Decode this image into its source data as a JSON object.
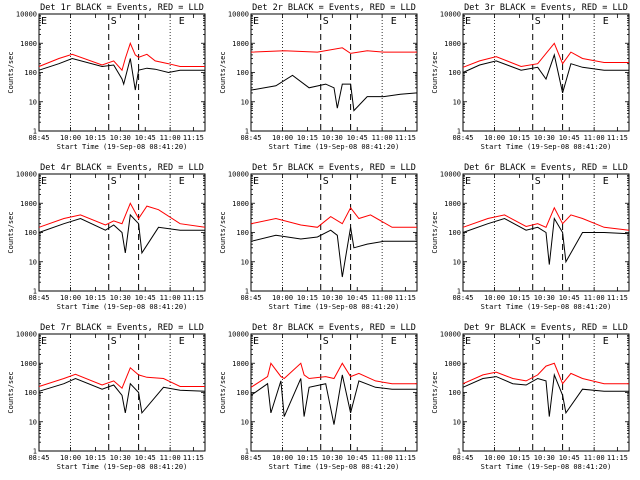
{
  "chart_data": [
    {
      "type": "line",
      "title": "Det 1r BLACK = Events, RED = LLD",
      "xlabel": "Start Time (19-Sep-08 08:41:20)",
      "ylabel": "Counts/sec",
      "yscale": "log",
      "ylim": [
        1,
        10000
      ],
      "yticks": [
        "1",
        "10",
        "100",
        "1000",
        "10000"
      ],
      "xticks": [
        "08:45",
        "10:00",
        "10:15",
        "10:30",
        "10:45",
        "11:00",
        "11:15"
      ],
      "markers": [
        "E",
        "S",
        "E"
      ],
      "series": [
        {
          "color": "#ff0000",
          "x": [
            0,
            0.12,
            0.2,
            0.38,
            0.45,
            0.5,
            0.52,
            0.55,
            0.58,
            0.6,
            0.65,
            0.7,
            0.78,
            0.85,
            1
          ],
          "y": [
            160,
            300,
            420,
            180,
            250,
            120,
            300,
            1000,
            400,
            330,
            420,
            250,
            200,
            160,
            160
          ]
        },
        {
          "color": "#000000",
          "x": [
            0,
            0.12,
            0.2,
            0.38,
            0.45,
            0.5,
            0.51,
            0.55,
            0.58,
            0.6,
            0.65,
            0.7,
            0.78,
            0.85,
            1
          ],
          "y": [
            120,
            200,
            300,
            160,
            180,
            60,
            40,
            300,
            25,
            120,
            140,
            130,
            100,
            120,
            120
          ]
        }
      ]
    },
    {
      "type": "line",
      "title": "Det 2r BLACK = Events, RED = LLD",
      "xlabel": "Start Time (19-Sep-08 08:41:20)",
      "ylabel": "Counts/sec",
      "yscale": "log",
      "ylim": [
        1,
        10000
      ],
      "yticks": [
        "1",
        "10",
        "100",
        "1000",
        "10000"
      ],
      "xticks": [
        "08:45",
        "10:00",
        "10:15",
        "10:30",
        "10:45",
        "11:00",
        "11:15"
      ],
      "markers": [
        "E",
        "S",
        "E"
      ],
      "series": [
        {
          "color": "#ff0000",
          "x": [
            0,
            0.2,
            0.4,
            0.55,
            0.6,
            0.7,
            0.8,
            1
          ],
          "y": [
            500,
            550,
            500,
            700,
            450,
            550,
            500,
            500
          ]
        },
        {
          "color": "#000000",
          "x": [
            0,
            0.15,
            0.25,
            0.35,
            0.45,
            0.5,
            0.52,
            0.55,
            0.6,
            0.62,
            0.7,
            0.8,
            0.9,
            1
          ],
          "y": [
            25,
            35,
            80,
            30,
            40,
            30,
            6,
            40,
            40,
            5,
            15,
            15,
            18,
            20
          ]
        }
      ]
    },
    {
      "type": "line",
      "title": "Det 3r BLACK = Events, RED = LLD",
      "xlabel": "Start Time (19-Sep-08 08:41:20)",
      "ylabel": "Counts/sec",
      "yscale": "log",
      "ylim": [
        1,
        10000
      ],
      "yticks": [
        "1",
        "10",
        "100",
        "1000",
        "10000"
      ],
      "xticks": [
        "08:45",
        "10:00",
        "10:15",
        "10:30",
        "10:45",
        "11:00",
        "11:15"
      ],
      "markers": [
        "E",
        "S",
        "E"
      ],
      "series": [
        {
          "color": "#ff0000",
          "x": [
            0,
            0.1,
            0.2,
            0.35,
            0.45,
            0.55,
            0.6,
            0.65,
            0.72,
            0.85,
            1
          ],
          "y": [
            150,
            250,
            350,
            160,
            200,
            1000,
            200,
            500,
            300,
            220,
            220
          ]
        },
        {
          "color": "#000000",
          "x": [
            0,
            0.1,
            0.2,
            0.35,
            0.45,
            0.5,
            0.55,
            0.6,
            0.65,
            0.72,
            0.85,
            1
          ],
          "y": [
            100,
            180,
            250,
            120,
            150,
            60,
            400,
            20,
            200,
            150,
            120,
            120
          ]
        }
      ]
    },
    {
      "type": "line",
      "title": "Det 4r BLACK = Events, RED = LLD",
      "xlabel": "Start Time (19-Sep-08 08:41:20)",
      "ylabel": "Counts/sec",
      "yscale": "log",
      "ylim": [
        1,
        10000
      ],
      "yticks": [
        "1",
        "10",
        "100",
        "1000",
        "10000"
      ],
      "xticks": [
        "08:45",
        "10:00",
        "10:15",
        "10:30",
        "10:45",
        "11:00",
        "11:15"
      ],
      "markers": [
        "E",
        "S",
        "E"
      ],
      "series": [
        {
          "color": "#ff0000",
          "x": [
            0,
            0.15,
            0.25,
            0.4,
            0.45,
            0.5,
            0.55,
            0.6,
            0.65,
            0.72,
            0.85,
            1
          ],
          "y": [
            150,
            300,
            400,
            180,
            250,
            200,
            1000,
            300,
            800,
            600,
            200,
            150
          ]
        },
        {
          "color": "#000000",
          "x": [
            0,
            0.15,
            0.25,
            0.4,
            0.45,
            0.5,
            0.52,
            0.55,
            0.6,
            0.62,
            0.72,
            0.85,
            1
          ],
          "y": [
            100,
            200,
            300,
            120,
            180,
            100,
            20,
            400,
            200,
            20,
            150,
            120,
            120
          ]
        }
      ]
    },
    {
      "type": "line",
      "title": "Det 5r BLACK = Events, RED = LLD",
      "xlabel": "Start Time (19-Sep-08 08:41:20)",
      "ylabel": "Counts/sec",
      "yscale": "log",
      "ylim": [
        1,
        10000
      ],
      "yticks": [
        "1",
        "10",
        "100",
        "1000",
        "10000"
      ],
      "xticks": [
        "08:45",
        "10:00",
        "10:15",
        "10:30",
        "10:45",
        "11:00",
        "11:15"
      ],
      "markers": [
        "E",
        "S",
        "E"
      ],
      "series": [
        {
          "color": "#ff0000",
          "x": [
            0,
            0.15,
            0.3,
            0.4,
            0.48,
            0.55,
            0.6,
            0.65,
            0.72,
            0.85,
            1
          ],
          "y": [
            200,
            300,
            180,
            150,
            350,
            200,
            700,
            300,
            400,
            150,
            150
          ]
        },
        {
          "color": "#000000",
          "x": [
            0,
            0.15,
            0.3,
            0.4,
            0.48,
            0.52,
            0.55,
            0.6,
            0.62,
            0.7,
            0.8,
            1
          ],
          "y": [
            50,
            80,
            60,
            70,
            120,
            80,
            3,
            150,
            30,
            40,
            50,
            50
          ]
        }
      ]
    },
    {
      "type": "line",
      "title": "Det 6r BLACK = Events, RED = LLD",
      "xlabel": "Start Time (19-Sep-08 08:41:20)",
      "ylabel": "Counts/sec",
      "yscale": "log",
      "ylim": [
        1,
        10000
      ],
      "yticks": [
        "1",
        "10",
        "100",
        "1000",
        "10000"
      ],
      "xticks": [
        "08:45",
        "10:00",
        "10:15",
        "10:30",
        "10:45",
        "11:00",
        "11:15"
      ],
      "markers": [
        "E",
        "S",
        "E"
      ],
      "series": [
        {
          "color": "#ff0000",
          "x": [
            0,
            0.15,
            0.25,
            0.38,
            0.45,
            0.5,
            0.55,
            0.6,
            0.65,
            0.72,
            0.85,
            1
          ],
          "y": [
            150,
            300,
            400,
            160,
            200,
            150,
            700,
            200,
            400,
            300,
            150,
            120
          ]
        },
        {
          "color": "#000000",
          "x": [
            0,
            0.15,
            0.25,
            0.38,
            0.45,
            0.5,
            0.52,
            0.55,
            0.6,
            0.62,
            0.72,
            0.85,
            1
          ],
          "y": [
            100,
            200,
            300,
            120,
            150,
            100,
            8,
            300,
            100,
            10,
            100,
            100,
            90
          ]
        }
      ]
    },
    {
      "type": "line",
      "title": "Det 7r BLACK = Events, RED = LLD",
      "xlabel": "Start Time (19-Sep-08 08:41:20)",
      "ylabel": "Counts/sec",
      "yscale": "log",
      "ylim": [
        1,
        10000
      ],
      "yticks": [
        "1",
        "10",
        "100",
        "1000",
        "10000"
      ],
      "xticks": [
        "08:45",
        "10:00",
        "10:15",
        "10:30",
        "10:45",
        "11:00",
        "11:15"
      ],
      "markers": [
        "E",
        "S",
        "E"
      ],
      "series": [
        {
          "color": "#ff0000",
          "x": [
            0,
            0.15,
            0.22,
            0.38,
            0.45,
            0.5,
            0.55,
            0.6,
            0.65,
            0.75,
            0.85,
            1
          ],
          "y": [
            160,
            300,
            420,
            180,
            250,
            140,
            700,
            400,
            330,
            300,
            160,
            160
          ]
        },
        {
          "color": "#000000",
          "x": [
            0,
            0.15,
            0.22,
            0.38,
            0.45,
            0.5,
            0.52,
            0.55,
            0.6,
            0.62,
            0.75,
            0.85,
            1
          ],
          "y": [
            110,
            200,
            300,
            130,
            180,
            80,
            20,
            200,
            100,
            20,
            150,
            120,
            110
          ]
        }
      ]
    },
    {
      "type": "line",
      "title": "Det 8r BLACK = Events, RED = LLD",
      "xlabel": "Start Time (19-Sep-08 08:41:20)",
      "ylabel": "Counts/sec",
      "yscale": "log",
      "ylim": [
        1,
        10000
      ],
      "yticks": [
        "1",
        "10",
        "100",
        "1000",
        "10000"
      ],
      "xticks": [
        "08:45",
        "10:00",
        "10:15",
        "10:30",
        "10:45",
        "11:00",
        "11:15"
      ],
      "markers": [
        "E",
        "S",
        "E"
      ],
      "series": [
        {
          "color": "#ff0000",
          "x": [
            0,
            0.1,
            0.12,
            0.18,
            0.2,
            0.3,
            0.32,
            0.35,
            0.45,
            0.5,
            0.55,
            0.6,
            0.65,
            0.75,
            0.85,
            1
          ],
          "y": [
            150,
            350,
            1000,
            350,
            300,
            1000,
            400,
            300,
            350,
            300,
            1000,
            350,
            450,
            250,
            200,
            200
          ]
        },
        {
          "color": "#000000",
          "x": [
            0,
            0.1,
            0.12,
            0.18,
            0.2,
            0.3,
            0.32,
            0.35,
            0.45,
            0.5,
            0.55,
            0.6,
            0.65,
            0.75,
            0.85,
            1
          ],
          "y": [
            80,
            200,
            20,
            250,
            15,
            300,
            15,
            150,
            200,
            8,
            400,
            20,
            250,
            150,
            130,
            130
          ]
        }
      ]
    },
    {
      "type": "line",
      "title": "Det 9r BLACK = Events, RED = LLD",
      "xlabel": "Start Time (19-Sep-08 08:41:20)",
      "ylabel": "Counts/sec",
      "yscale": "log",
      "ylim": [
        1,
        10000
      ],
      "yticks": [
        "1",
        "10",
        "100",
        "1000",
        "10000"
      ],
      "xticks": [
        "08:45",
        "10:00",
        "10:15",
        "10:30",
        "10:45",
        "11:00",
        "11:15"
      ],
      "markers": [
        "E",
        "S",
        "E"
      ],
      "series": [
        {
          "color": "#ff0000",
          "x": [
            0,
            0.12,
            0.2,
            0.3,
            0.38,
            0.45,
            0.5,
            0.55,
            0.6,
            0.65,
            0.72,
            0.85,
            1
          ],
          "y": [
            200,
            400,
            500,
            300,
            250,
            400,
            800,
            1000,
            200,
            450,
            300,
            200,
            200
          ]
        },
        {
          "color": "#000000",
          "x": [
            0,
            0.12,
            0.2,
            0.3,
            0.38,
            0.45,
            0.5,
            0.52,
            0.55,
            0.6,
            0.62,
            0.72,
            0.85,
            1
          ],
          "y": [
            150,
            300,
            350,
            200,
            180,
            300,
            250,
            15,
            400,
            80,
            20,
            130,
            110,
            110
          ]
        }
      ]
    }
  ]
}
